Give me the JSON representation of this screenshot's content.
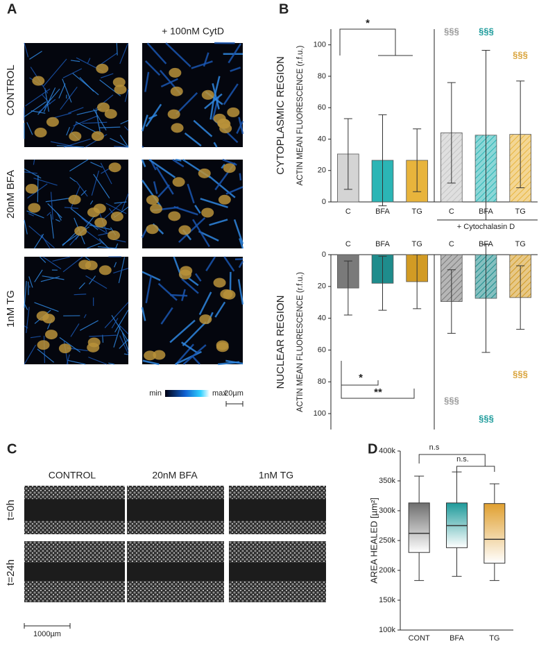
{
  "panel_labels": [
    "A",
    "B",
    "C",
    "D"
  ],
  "panel_a": {
    "column_header": "+ 100nM CytD",
    "row_labels": [
      "CONTROL",
      "20nM BFA",
      "1nM TG"
    ],
    "colorbar_min": "min",
    "colorbar_max": "max",
    "scale_bar": "20µm"
  },
  "panel_c": {
    "column_headers": [
      "CONTROL",
      "20nM BFA",
      "1nM TG"
    ],
    "row_labels": [
      "t=0h",
      "t=24h"
    ],
    "scale_bar": "1000µm"
  },
  "chart_data": [
    {
      "type": "bar",
      "title": "CYTOPLASMIC REGION",
      "y_label": "ACTIN MEAN FLUORESCENCE (r.f.u.)",
      "categories": [
        "C",
        "BFA",
        "TG",
        "C",
        "BFA",
        "TG"
      ],
      "values": [
        30.5,
        26.5,
        26.5,
        44,
        42.5,
        43
      ],
      "errors": [
        22.5,
        29,
        20,
        32,
        54,
        34
      ],
      "colors": [
        "#d4d4d4",
        "#2bb5b5",
        "#e8b43c",
        "#c4c4c4",
        "#2bb5b5",
        "#e8b43c"
      ],
      "hatched": [
        false,
        false,
        false,
        true,
        true,
        true
      ],
      "ylim": [
        0,
        110
      ],
      "yticks": [
        0,
        20,
        40,
        60,
        80,
        100
      ],
      "inverted": false,
      "group_label": "+ Cytochalasin D",
      "annotations": [
        {
          "text": "*",
          "color": "#222222"
        },
        {
          "text": "§§§",
          "color": "#9a9a9a"
        },
        {
          "text": "§§§",
          "color": "#1a9a9a"
        },
        {
          "text": "§§§",
          "color": "#d9a33a"
        }
      ]
    },
    {
      "type": "bar",
      "title": "NUCLEAR REGION",
      "y_label": "ACTIN MEAN FLUORESCENCE (r.f.u.)",
      "categories": [
        "C",
        "BFA",
        "TG",
        "C",
        "BFA",
        "TG"
      ],
      "values": [
        21,
        18,
        17,
        29.5,
        27.5,
        27
      ],
      "errors": [
        17,
        17,
        17,
        20,
        34,
        20
      ],
      "colors": [
        "#7a7a7a",
        "#1e8c8c",
        "#d29b24",
        "#7a7a7a",
        "#1e8c8c",
        "#d29b24"
      ],
      "hatched": [
        false,
        false,
        false,
        true,
        true,
        true
      ],
      "ylim": [
        0,
        110
      ],
      "yticks": [
        0,
        20,
        40,
        60,
        80,
        100
      ],
      "inverted": true,
      "annotations": [
        {
          "text": "*",
          "color": "#222222"
        },
        {
          "text": "**",
          "color": "#222222"
        },
        {
          "text": "§§§",
          "color": "#9a9a9a"
        },
        {
          "text": "§§§",
          "color": "#1a9a9a"
        },
        {
          "text": "§§§",
          "color": "#d9a33a"
        }
      ]
    },
    {
      "type": "box",
      "y_label": "AREA HEALED [µm²]",
      "categories": [
        "CONT",
        "BFA",
        "TG"
      ],
      "whisker_low": [
        183000,
        190000,
        183000
      ],
      "q1": [
        230000,
        238000,
        212000
      ],
      "median": [
        262000,
        275000,
        252000
      ],
      "q3": [
        313000,
        313000,
        312000
      ],
      "whisker_high": [
        358000,
        365000,
        345000
      ],
      "colors": [
        "#6e6e6e",
        "#1e9a9a",
        "#e0a030"
      ],
      "ylim": [
        100000,
        400000
      ],
      "yticks": [
        {
          "value": 100000,
          "label": "100k"
        },
        {
          "value": 150000,
          "label": "150k"
        },
        {
          "value": 200000,
          "label": "200k"
        },
        {
          "value": 250000,
          "label": "250k"
        },
        {
          "value": 300000,
          "label": "300k"
        },
        {
          "value": 350000,
          "label": "350k"
        },
        {
          "value": 400000,
          "label": "400k"
        }
      ],
      "annotations": [
        {
          "text": "n.s",
          "color": "#222222"
        },
        {
          "text": "n.s.",
          "color": "#222222"
        }
      ]
    }
  ]
}
